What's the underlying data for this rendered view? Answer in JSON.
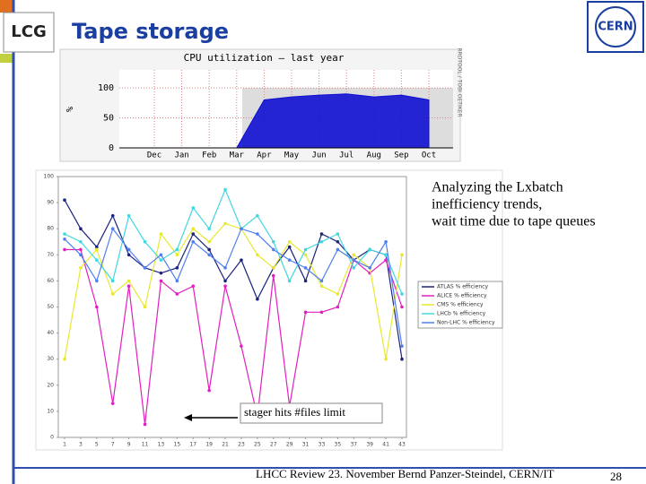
{
  "header": {
    "title": "Tape storage",
    "logo_left": "LCG",
    "logo_right": "CERN"
  },
  "chart_data": [
    {
      "type": "area",
      "title": "CPU utilization – last year",
      "y_label": "%",
      "side_note": "RRDTOOL / TOBI OETIKER",
      "categories": [
        "Dec",
        "Jan",
        "Feb",
        "Mar",
        "Apr",
        "May",
        "Jun",
        "Jul",
        "Aug",
        "Sep",
        "Oct"
      ],
      "values": [
        0,
        0,
        0,
        0,
        80,
        85,
        88,
        90,
        85,
        88,
        80
      ],
      "color": "#1010d0",
      "ylim": [
        0,
        130
      ],
      "yticks": [
        0,
        50,
        100
      ],
      "grid": true
    },
    {
      "type": "line",
      "annotation": "stager hits #files limit",
      "x": [
        1,
        3,
        5,
        7,
        9,
        11,
        13,
        15,
        17,
        19,
        21,
        23,
        25,
        27,
        29,
        31,
        33,
        35,
        37,
        39,
        41,
        43
      ],
      "xlim": [
        1,
        43
      ],
      "xticks": [
        1,
        3,
        5,
        7,
        9,
        11,
        13,
        15,
        17,
        19,
        21,
        23,
        25,
        27,
        29,
        31,
        33,
        35,
        37,
        39,
        41,
        43
      ],
      "ylim": [
        0,
        100
      ],
      "yticks": [
        0,
        10,
        20,
        30,
        40,
        50,
        60,
        70,
        80,
        90,
        100
      ],
      "legend": "right",
      "series": [
        {
          "name": "ATLAS % efficiency",
          "color": "#1a237e",
          "values": [
            91,
            80,
            73,
            85,
            70,
            65,
            63,
            65,
            78,
            72,
            60,
            68,
            53,
            65,
            73,
            60,
            78,
            75,
            68,
            72,
            70,
            30
          ]
        },
        {
          "name": "ALICE % efficiency",
          "color": "#e020c0",
          "values": [
            72,
            72,
            50,
            13,
            58,
            5,
            60,
            55,
            58,
            18,
            58,
            35,
            8,
            62,
            12,
            48,
            48,
            50,
            68,
            63,
            68,
            50
          ]
        },
        {
          "name": "CMS % efficiency",
          "color": "#e8e830",
          "values": [
            30,
            65,
            72,
            55,
            60,
            50,
            78,
            70,
            80,
            75,
            82,
            80,
            70,
            65,
            75,
            70,
            58,
            55,
            70,
            65,
            30,
            70
          ]
        },
        {
          "name": "LHCb % efficiency",
          "color": "#40d8e0",
          "values": [
            78,
            75,
            68,
            60,
            85,
            75,
            68,
            72,
            88,
            80,
            95,
            80,
            85,
            75,
            60,
            72,
            75,
            78,
            65,
            72,
            70,
            55
          ]
        },
        {
          "name": "Non-LHC % efficiency",
          "color": "#5080f0",
          "values": [
            76,
            70,
            60,
            80,
            72,
            65,
            70,
            60,
            75,
            70,
            65,
            80,
            78,
            72,
            68,
            65,
            60,
            72,
            68,
            65,
            75,
            35
          ]
        }
      ]
    }
  ],
  "body": {
    "lines": [
      "Analyzing the Lxbatch",
      "inefficiency trends,",
      "wait time due to tape queues"
    ]
  },
  "footer": {
    "text": "LHCC Review 23. November   Bernd Panzer-Steindel, CERN/IT",
    "page": "28"
  }
}
